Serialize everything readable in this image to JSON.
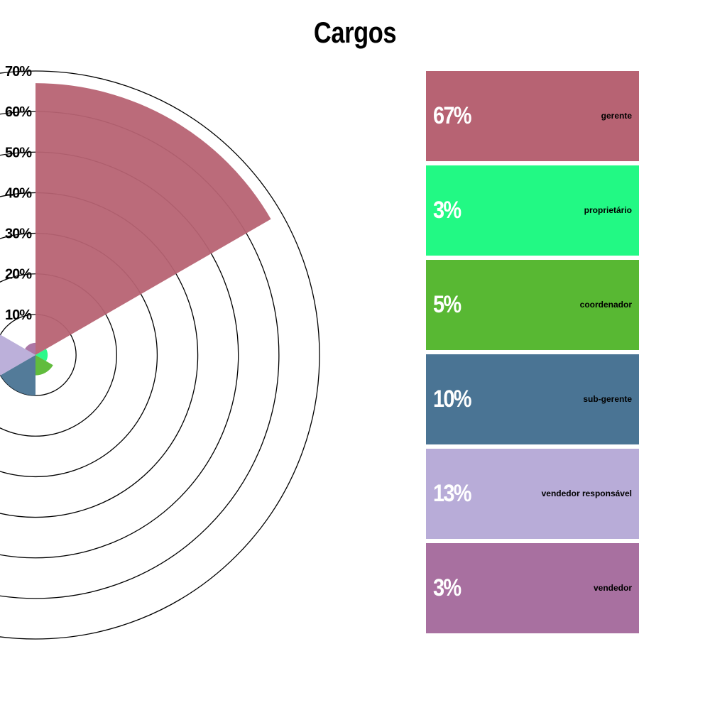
{
  "chart_data": {
    "type": "polar-area",
    "title": "Cargos",
    "radial_ticks": [
      "10%",
      "20%",
      "30%",
      "40%",
      "50%",
      "60%",
      "70%"
    ],
    "radial_range": [
      0,
      70
    ],
    "categories": [
      "gerente",
      "proprietário",
      "coordenador",
      "sub-gerente",
      "vendedor responsável",
      "vendedor"
    ],
    "values": [
      67,
      3,
      5,
      10,
      13,
      3
    ],
    "labels": [
      "67%",
      "3%",
      "5%",
      "10%",
      "13%",
      "3%"
    ],
    "colors": [
      "#b76373",
      "#22f984",
      "#58b833",
      "#4a7494",
      "#b8acd8",
      "#a870a0"
    ],
    "legend_position": "right"
  }
}
